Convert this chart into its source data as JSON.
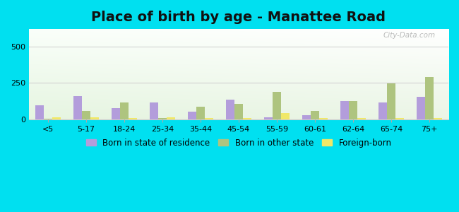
{
  "title": "Place of birth by age - Manattee Road",
  "categories": [
    "<5",
    "5-17",
    "18-24",
    "25-34",
    "35-44",
    "45-54",
    "55-59",
    "60-61",
    "62-64",
    "65-74",
    "75+"
  ],
  "born_in_state": [
    95,
    160,
    75,
    115,
    50,
    135,
    12,
    25,
    125,
    115,
    155
  ],
  "born_other_state": [
    4,
    55,
    115,
    8,
    85,
    105,
    185,
    58,
    125,
    248,
    290
  ],
  "foreign_born": [
    10,
    10,
    8,
    10,
    8,
    8,
    42,
    8,
    8,
    8,
    8
  ],
  "color_state": "#b39ddb",
  "color_other": "#aec47f",
  "color_foreign": "#f0e868",
  "outer_bg": "#00e0f0",
  "ylim": [
    0,
    620
  ],
  "yticks": [
    0,
    250,
    500
  ],
  "title_fontsize": 14,
  "legend_fontsize": 8.5,
  "watermark": "City-Data.com"
}
